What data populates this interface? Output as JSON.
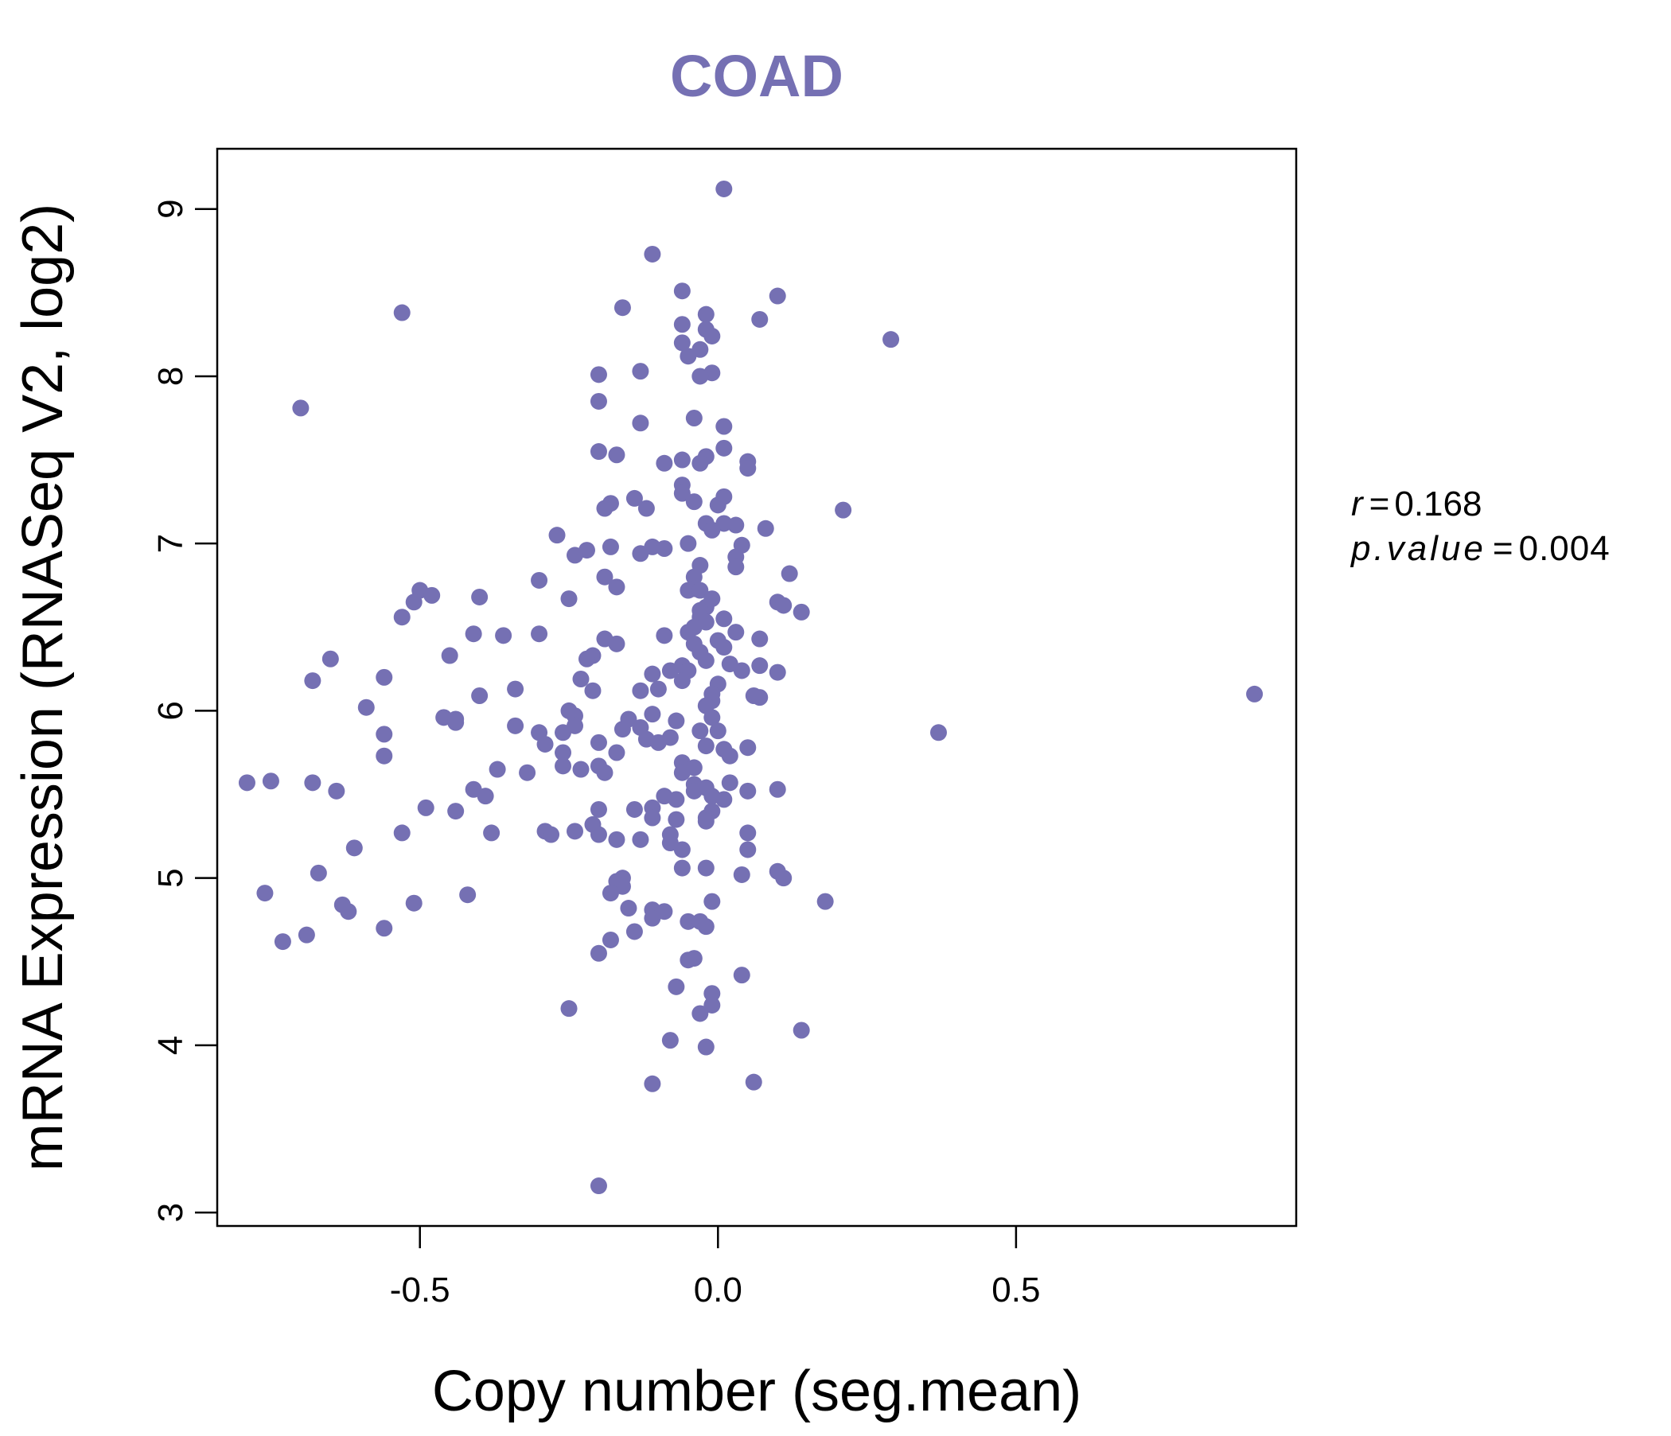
{
  "colors": {
    "accent": "#7570b3",
    "axis": "#000000",
    "background": "#ffffff"
  },
  "chart_data": {
    "type": "scatter",
    "title": "COAD",
    "xlabel": "Copy number (seg.mean)",
    "ylabel": "mRNA Expression (RNASeq V2, log2)",
    "xlim": [
      -0.84,
      0.97
    ],
    "ylim": [
      2.92,
      9.36
    ],
    "x_ticks": [
      -0.5,
      0.0,
      0.5
    ],
    "x_tick_labels": [
      "-0.5",
      "0.0",
      "0.5"
    ],
    "y_ticks": [
      3,
      4,
      5,
      6,
      7,
      8,
      9
    ],
    "y_tick_labels": [
      "3",
      "4",
      "5",
      "6",
      "7",
      "8",
      "9"
    ],
    "grid": false,
    "legend": "none",
    "stats": {
      "r_label": "r",
      "r_value": "0.168",
      "p_label": "p.value",
      "p_value": "0.004"
    },
    "points": [
      [
        0.01,
        9.12
      ],
      [
        -0.11,
        8.73
      ],
      [
        -0.06,
        8.51
      ],
      [
        0.1,
        8.48
      ],
      [
        -0.16,
        8.41
      ],
      [
        -0.53,
        8.38
      ],
      [
        -0.02,
        8.37
      ],
      [
        -0.06,
        8.31
      ],
      [
        0.07,
        8.34
      ],
      [
        -0.02,
        8.28
      ],
      [
        -0.01,
        8.24
      ],
      [
        0.29,
        8.22
      ],
      [
        -0.06,
        8.2
      ],
      [
        -0.03,
        8.16
      ],
      [
        -0.05,
        8.12
      ],
      [
        -0.13,
        8.03
      ],
      [
        -0.2,
        8.01
      ],
      [
        -0.01,
        8.02
      ],
      [
        -0.03,
        8.0
      ],
      [
        -0.7,
        7.81
      ],
      [
        -0.2,
        7.85
      ],
      [
        -0.04,
        7.75
      ],
      [
        -0.13,
        7.72
      ],
      [
        0.01,
        7.7
      ],
      [
        0.01,
        7.57
      ],
      [
        -0.2,
        7.55
      ],
      [
        -0.17,
        7.53
      ],
      [
        -0.02,
        7.52
      ],
      [
        -0.06,
        7.5
      ],
      [
        -0.03,
        7.48
      ],
      [
        -0.09,
        7.48
      ],
      [
        0.05,
        7.49
      ],
      [
        0.05,
        7.45
      ],
      [
        -0.06,
        7.35
      ],
      [
        -0.06,
        7.3
      ],
      [
        -0.14,
        7.27
      ],
      [
        0.01,
        7.28
      ],
      [
        -0.04,
        7.25
      ],
      [
        -0.18,
        7.24
      ],
      [
        -0.19,
        7.21
      ],
      [
        -0.12,
        7.21
      ],
      [
        0.0,
        7.23
      ],
      [
        0.21,
        7.2
      ],
      [
        -0.02,
        7.12
      ],
      [
        0.01,
        7.12
      ],
      [
        0.03,
        7.11
      ],
      [
        -0.01,
        7.08
      ],
      [
        0.08,
        7.09
      ],
      [
        -0.27,
        7.05
      ],
      [
        -0.05,
        7.0
      ],
      [
        0.04,
        6.99
      ],
      [
        -0.11,
        6.98
      ],
      [
        -0.18,
        6.98
      ],
      [
        -0.09,
        6.97
      ],
      [
        -0.22,
        6.96
      ],
      [
        -0.24,
        6.93
      ],
      [
        -0.13,
        6.94
      ],
      [
        0.03,
        6.92
      ],
      [
        -0.03,
        6.87
      ],
      [
        0.03,
        6.86
      ],
      [
        0.12,
        6.82
      ],
      [
        -0.04,
        6.8
      ],
      [
        -0.19,
        6.8
      ],
      [
        -0.3,
        6.78
      ],
      [
        -0.17,
        6.74
      ],
      [
        -0.04,
        6.73
      ],
      [
        -0.05,
        6.72
      ],
      [
        -0.03,
        6.72
      ],
      [
        -0.5,
        6.72
      ],
      [
        -0.48,
        6.69
      ],
      [
        -0.4,
        6.68
      ],
      [
        -0.01,
        6.67
      ],
      [
        -0.25,
        6.67
      ],
      [
        -0.51,
        6.65
      ],
      [
        0.1,
        6.65
      ],
      [
        0.11,
        6.63
      ],
      [
        -0.02,
        6.62
      ],
      [
        -0.03,
        6.6
      ],
      [
        0.14,
        6.59
      ],
      [
        -0.53,
        6.56
      ],
      [
        -0.03,
        6.56
      ],
      [
        0.01,
        6.55
      ],
      [
        -0.02,
        6.53
      ],
      [
        -0.04,
        6.5
      ],
      [
        -0.05,
        6.47
      ],
      [
        0.03,
        6.47
      ],
      [
        -0.3,
        6.46
      ],
      [
        -0.41,
        6.46
      ],
      [
        -0.36,
        6.45
      ],
      [
        -0.09,
        6.45
      ],
      [
        -0.19,
        6.43
      ],
      [
        0.07,
        6.43
      ],
      [
        0.0,
        6.42
      ],
      [
        -0.17,
        6.4
      ],
      [
        -0.04,
        6.4
      ],
      [
        0.01,
        6.38
      ],
      [
        -0.03,
        6.35
      ],
      [
        -0.21,
        6.33
      ],
      [
        -0.45,
        6.33
      ],
      [
        -0.22,
        6.31
      ],
      [
        -0.65,
        6.31
      ],
      [
        -0.02,
        6.3
      ],
      [
        0.02,
        6.28
      ],
      [
        0.07,
        6.27
      ],
      [
        -0.06,
        6.27
      ],
      [
        -0.08,
        6.24
      ],
      [
        -0.05,
        6.24
      ],
      [
        -0.11,
        6.22
      ],
      [
        0.04,
        6.24
      ],
      [
        0.1,
        6.23
      ],
      [
        -0.56,
        6.2
      ],
      [
        -0.23,
        6.19
      ],
      [
        -0.68,
        6.18
      ],
      [
        -0.06,
        6.18
      ],
      [
        0.0,
        6.16
      ],
      [
        -0.34,
        6.13
      ],
      [
        -0.21,
        6.12
      ],
      [
        -0.1,
        6.13
      ],
      [
        -0.13,
        6.12
      ],
      [
        -0.01,
        6.1
      ],
      [
        0.06,
        6.09
      ],
      [
        0.07,
        6.08
      ],
      [
        -0.4,
        6.09
      ],
      [
        -0.01,
        6.06
      ],
      [
        -0.02,
        6.03
      ],
      [
        -0.59,
        6.02
      ],
      [
        -0.25,
        6.0
      ],
      [
        -0.11,
        5.98
      ],
      [
        -0.24,
        5.97
      ],
      [
        -0.46,
        5.96
      ],
      [
        -0.44,
        5.95
      ],
      [
        -0.15,
        5.95
      ],
      [
        -0.01,
        5.96
      ],
      [
        -0.07,
        5.94
      ],
      [
        -0.44,
        5.93
      ],
      [
        -0.34,
        5.91
      ],
      [
        -0.24,
        5.91
      ],
      [
        -0.13,
        5.9
      ],
      [
        -0.16,
        5.89
      ],
      [
        -0.03,
        5.88
      ],
      [
        0.0,
        5.88
      ],
      [
        -0.3,
        5.87
      ],
      [
        -0.26,
        5.87
      ],
      [
        -0.56,
        5.86
      ],
      [
        0.37,
        5.87
      ],
      [
        -0.08,
        5.84
      ],
      [
        -0.12,
        5.83
      ],
      [
        -0.1,
        5.81
      ],
      [
        -0.2,
        5.81
      ],
      [
        -0.29,
        5.8
      ],
      [
        -0.02,
        5.79
      ],
      [
        0.05,
        5.78
      ],
      [
        0.01,
        5.77
      ],
      [
        -0.26,
        5.75
      ],
      [
        -0.17,
        5.75
      ],
      [
        -0.56,
        5.73
      ],
      [
        0.02,
        5.73
      ],
      [
        -0.06,
        5.69
      ],
      [
        -0.2,
        5.67
      ],
      [
        -0.04,
        5.66
      ],
      [
        -0.37,
        5.65
      ],
      [
        -0.23,
        5.65
      ],
      [
        -0.26,
        5.67
      ],
      [
        -0.19,
        5.63
      ],
      [
        -0.06,
        5.63
      ],
      [
        -0.32,
        5.63
      ],
      [
        -0.79,
        5.57
      ],
      [
        -0.75,
        5.58
      ],
      [
        -0.68,
        5.57
      ],
      [
        0.02,
        5.57
      ],
      [
        -0.04,
        5.56
      ],
      [
        -0.02,
        5.54
      ],
      [
        -0.41,
        5.53
      ],
      [
        -0.04,
        5.52
      ],
      [
        0.05,
        5.52
      ],
      [
        0.1,
        5.53
      ],
      [
        -0.64,
        5.52
      ],
      [
        -0.39,
        5.49
      ],
      [
        -0.09,
        5.49
      ],
      [
        -0.07,
        5.47
      ],
      [
        -0.01,
        5.49
      ],
      [
        0.01,
        5.47
      ],
      [
        -0.11,
        5.42
      ],
      [
        -0.49,
        5.42
      ],
      [
        -0.2,
        5.41
      ],
      [
        -0.14,
        5.41
      ],
      [
        -0.44,
        5.4
      ],
      [
        -0.01,
        5.4
      ],
      [
        -0.02,
        5.36
      ],
      [
        -0.11,
        5.36
      ],
      [
        -0.07,
        5.35
      ],
      [
        -0.02,
        5.34
      ],
      [
        -0.21,
        5.32
      ],
      [
        -0.29,
        5.28
      ],
      [
        -0.24,
        5.28
      ],
      [
        -0.28,
        5.26
      ],
      [
        -0.38,
        5.27
      ],
      [
        -0.53,
        5.27
      ],
      [
        0.05,
        5.27
      ],
      [
        -0.08,
        5.26
      ],
      [
        -0.17,
        5.23
      ],
      [
        -0.13,
        5.23
      ],
      [
        -0.2,
        5.26
      ],
      [
        -0.08,
        5.21
      ],
      [
        -0.06,
        5.17
      ],
      [
        0.05,
        5.17
      ],
      [
        -0.61,
        5.18
      ],
      [
        -0.06,
        5.06
      ],
      [
        -0.02,
        5.06
      ],
      [
        -0.67,
        5.03
      ],
      [
        0.1,
        5.04
      ],
      [
        0.04,
        5.02
      ],
      [
        0.11,
        5.0
      ],
      [
        -0.16,
        5.0
      ],
      [
        -0.17,
        4.98
      ],
      [
        -0.16,
        4.95
      ],
      [
        -0.18,
        4.91
      ],
      [
        -0.76,
        4.91
      ],
      [
        -0.42,
        4.9
      ],
      [
        -0.63,
        4.84
      ],
      [
        -0.51,
        4.85
      ],
      [
        -0.01,
        4.86
      ],
      [
        0.18,
        4.86
      ],
      [
        -0.15,
        4.82
      ],
      [
        -0.11,
        4.81
      ],
      [
        -0.09,
        4.8
      ],
      [
        -0.62,
        4.8
      ],
      [
        -0.11,
        4.76
      ],
      [
        -0.05,
        4.74
      ],
      [
        -0.03,
        4.74
      ],
      [
        -0.02,
        4.71
      ],
      [
        -0.56,
        4.7
      ],
      [
        -0.14,
        4.68
      ],
      [
        -0.69,
        4.66
      ],
      [
        -0.73,
        4.62
      ],
      [
        -0.18,
        4.63
      ],
      [
        -0.2,
        4.55
      ],
      [
        -0.04,
        4.52
      ],
      [
        -0.05,
        4.51
      ],
      [
        0.04,
        4.42
      ],
      [
        -0.07,
        4.35
      ],
      [
        -0.01,
        4.31
      ],
      [
        -0.01,
        4.24
      ],
      [
        -0.25,
        4.22
      ],
      [
        -0.03,
        4.19
      ],
      [
        0.14,
        4.09
      ],
      [
        -0.08,
        4.03
      ],
      [
        -0.02,
        3.99
      ],
      [
        -0.11,
        3.77
      ],
      [
        0.06,
        3.78
      ],
      [
        -0.2,
        3.16
      ],
      [
        0.9,
        6.1
      ]
    ]
  }
}
